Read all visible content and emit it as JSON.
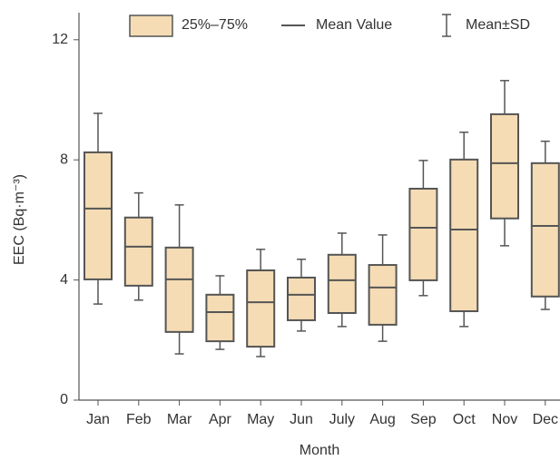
{
  "chart_data": {
    "type": "box",
    "x_label": "Month",
    "y_label": "EEC (Bq·m⁻³)",
    "categories": [
      "Jan",
      "Feb",
      "Mar",
      "Apr",
      "May",
      "Jun",
      "July",
      "Aug",
      "Sep",
      "Oct",
      "Nov",
      "Dec"
    ],
    "series": [
      {
        "name": "25%–75%",
        "color": "#f5dcb4",
        "low": [
          4.02,
          3.81,
          2.27,
          1.96,
          1.78,
          2.66,
          2.9,
          2.51,
          3.99,
          2.96,
          6.05,
          3.45
        ],
        "high": [
          8.25,
          6.08,
          5.08,
          3.51,
          4.32,
          4.08,
          4.84,
          4.5,
          7.04,
          8.01,
          9.52,
          7.89
        ]
      },
      {
        "name": "Mean Value",
        "color": "#555555",
        "values": [
          6.38,
          5.11,
          4.02,
          2.93,
          3.26,
          3.51,
          3.99,
          3.75,
          5.74,
          5.68,
          7.89,
          5.8
        ]
      },
      {
        "name": "Mean±SD",
        "color": "#555555",
        "low": [
          3.2,
          3.33,
          1.54,
          1.69,
          1.45,
          2.3,
          2.45,
          1.96,
          3.48,
          2.45,
          5.14,
          3.02
        ],
        "high": [
          9.55,
          6.9,
          6.5,
          4.14,
          5.02,
          4.69,
          5.56,
          5.5,
          7.98,
          8.92,
          10.64,
          8.62
        ]
      }
    ],
    "ylim": [
      0,
      12.9
    ],
    "yticks": [
      0,
      4,
      8,
      12
    ]
  }
}
